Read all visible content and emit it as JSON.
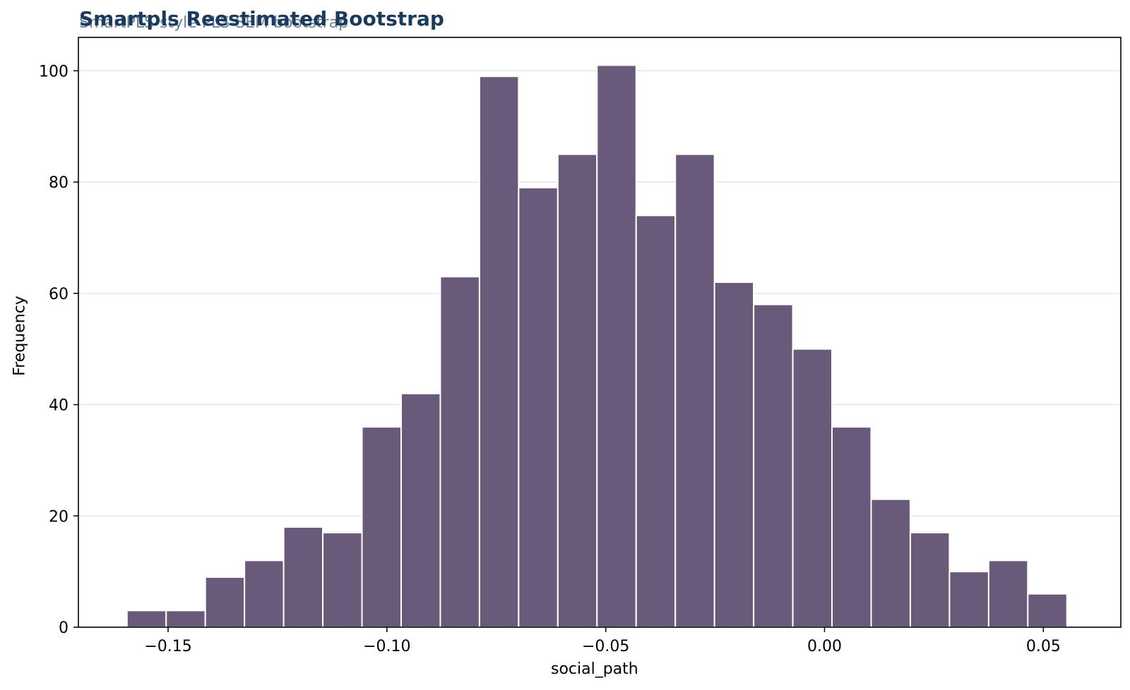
{
  "chart_data": {
    "type": "bar",
    "title": "Smartpls Reestimated Bootstrap",
    "subtitle": "SmartPLS-style PLS-SEM bootstrap",
    "xlabel": "social_path",
    "ylabel": "Frequency",
    "bin_width": 0.00895,
    "bin_start": -0.1594,
    "values": [
      3,
      3,
      9,
      12,
      18,
      17,
      36,
      42,
      63,
      99,
      79,
      85,
      101,
      74,
      85,
      62,
      58,
      50,
      36,
      23,
      17,
      10,
      12,
      6
    ],
    "xlim": [
      -0.1705,
      0.0677
    ],
    "ylim": [
      0,
      106
    ],
    "xticks": [
      -0.15,
      -0.1,
      -0.05,
      0.0,
      0.05
    ],
    "xtick_labels": [
      "−0.15",
      "−0.10",
      "−0.05",
      "0.00",
      "0.05"
    ],
    "yticks": [
      0,
      20,
      40,
      60,
      80,
      100
    ],
    "ytick_labels": [
      "0",
      "20",
      "40",
      "60",
      "80",
      "100"
    ],
    "bar_color": "#6a5a7a",
    "grid": "horizontal"
  }
}
